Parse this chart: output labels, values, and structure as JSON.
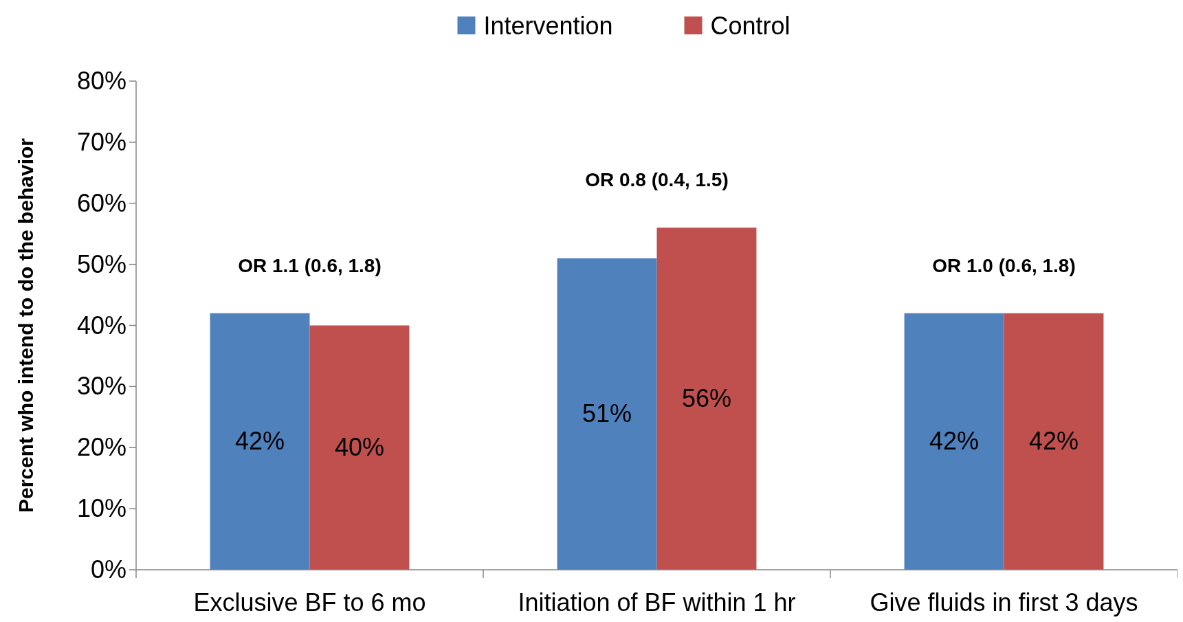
{
  "chart_data": {
    "type": "bar",
    "ylabel": "Percent who intend to do the behavior",
    "categories": [
      "Exclusive BF to 6 mo",
      "Initiation of BF within 1 hr",
      "Give fluids in first 3 days"
    ],
    "series": [
      {
        "name": "Intervention",
        "color": "#4f81bd",
        "values": [
          42,
          51,
          42
        ],
        "value_labels": [
          "42%",
          "51%",
          "42%"
        ]
      },
      {
        "name": "Control",
        "color": "#c0504d",
        "values": [
          40,
          56,
          42
        ],
        "value_labels": [
          "40%",
          "56%",
          "42%"
        ]
      }
    ],
    "ylim": [
      0,
      80
    ],
    "yticks": [
      {
        "value": 0,
        "label": "0%"
      },
      {
        "value": 10,
        "label": "10%"
      },
      {
        "value": 20,
        "label": "20%"
      },
      {
        "value": 30,
        "label": "30%"
      },
      {
        "value": 40,
        "label": "40%"
      },
      {
        "value": 50,
        "label": "50%"
      },
      {
        "value": 60,
        "label": "60%"
      },
      {
        "value": 70,
        "label": "70%"
      },
      {
        "value": 80,
        "label": "80%"
      }
    ],
    "annotations": [
      "OR 1.1 (0.6, 1.8)",
      "OR 0.8 (0.4, 1.5)",
      "OR 1.0 (0.6, 1.8)"
    ],
    "grid": false,
    "legend": "top"
  }
}
